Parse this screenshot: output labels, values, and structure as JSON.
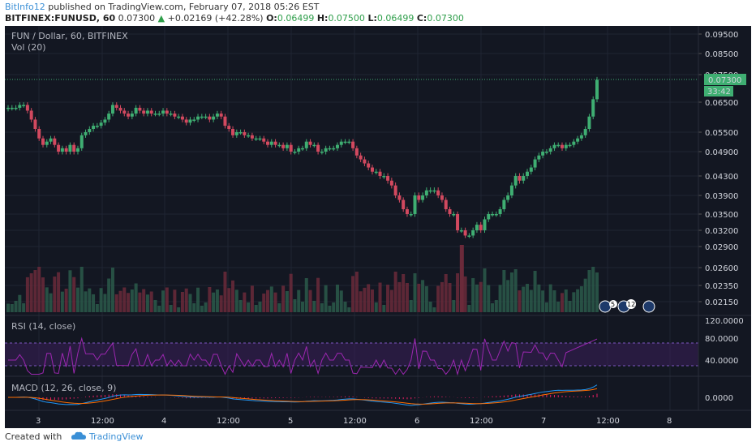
{
  "header": {
    "user": "BitInfo12",
    "published_text": "published on TradingView.com, February 07, 2018 05:26 EST",
    "symbol": "BITFINEX:FUNUSD, 60",
    "last": "0.07300",
    "change_arrow": "▲",
    "change": "+0.02169 (+42.28%)",
    "o_label": "O:",
    "o": "0.06499",
    "h_label": "H:",
    "h": "0.07500",
    "l_label": "L:",
    "l": "0.06499",
    "c_label": "C:",
    "c": "0.07300"
  },
  "panels": {
    "main_title": "FUN / Dollar, 60, BITFINEX",
    "vol_label": "Vol (20)",
    "rsi_label": "RSI (14, close)",
    "macd_label": "MACD (12, 26, close, 9)",
    "current_price": "0.07300",
    "countdown": "33:42",
    "event_badges": [
      "5",
      "12"
    ]
  },
  "colors": {
    "background": "#131722",
    "up": "#26a69a",
    "down": "#ef5350",
    "up_candle": "#3fae72",
    "down_candle": "#d2495f",
    "rsi_band": "#3a1f5a",
    "rsi_line": "#9c27b0",
    "macd_line": "#2196f3",
    "signal_line": "#ff6d00",
    "hist": "#e91e63"
  },
  "chart_data": {
    "type": "candlestick",
    "price_axis_ticks": [
      "0.09500",
      "0.08500",
      "0.07500",
      "0.06500",
      "0.05500",
      "0.04900",
      "0.04300",
      "0.03900",
      "0.03500",
      "0.03200",
      "0.02900",
      "0.02600",
      "0.02350",
      "0.02150"
    ],
    "price_ticks_numeric": [
      0.095,
      0.085,
      0.075,
      0.065,
      0.055,
      0.049,
      0.043,
      0.039,
      0.035,
      0.032,
      0.029,
      0.026,
      0.0235,
      0.0215
    ],
    "rsi_axis_ticks": [
      "120.0000",
      "80.0000",
      "40.0000"
    ],
    "macd_axis_ticks": [
      "0.0000"
    ],
    "x_axis_ticks": [
      "3",
      "12:00",
      "4",
      "12:00",
      "5",
      "12:00",
      "6",
      "12:00",
      "7",
      "12:00",
      "8"
    ],
    "closes": [
      0.063,
      0.063,
      0.063,
      0.064,
      0.064,
      0.062,
      0.059,
      0.056,
      0.053,
      0.051,
      0.052,
      0.053,
      0.051,
      0.049,
      0.05,
      0.049,
      0.051,
      0.049,
      0.05,
      0.054,
      0.055,
      0.056,
      0.057,
      0.057,
      0.058,
      0.059,
      0.061,
      0.064,
      0.063,
      0.062,
      0.061,
      0.06,
      0.061,
      0.063,
      0.062,
      0.061,
      0.062,
      0.061,
      0.061,
      0.061,
      0.062,
      0.061,
      0.061,
      0.06,
      0.06,
      0.059,
      0.058,
      0.059,
      0.059,
      0.06,
      0.06,
      0.06,
      0.059,
      0.06,
      0.061,
      0.06,
      0.057,
      0.056,
      0.054,
      0.055,
      0.055,
      0.054,
      0.054,
      0.053,
      0.053,
      0.053,
      0.052,
      0.051,
      0.052,
      0.051,
      0.051,
      0.05,
      0.051,
      0.049,
      0.049,
      0.05,
      0.05,
      0.052,
      0.051,
      0.051,
      0.049,
      0.049,
      0.05,
      0.05,
      0.05,
      0.051,
      0.052,
      0.052,
      0.052,
      0.05,
      0.048,
      0.047,
      0.046,
      0.045,
      0.044,
      0.044,
      0.043,
      0.043,
      0.042,
      0.041,
      0.039,
      0.038,
      0.036,
      0.035,
      0.035,
      0.039,
      0.038,
      0.039,
      0.04,
      0.04,
      0.04,
      0.039,
      0.038,
      0.036,
      0.035,
      0.035,
      0.032,
      0.032,
      0.031,
      0.031,
      0.032,
      0.033,
      0.032,
      0.034,
      0.035,
      0.035,
      0.035,
      0.036,
      0.038,
      0.039,
      0.041,
      0.043,
      0.042,
      0.043,
      0.044,
      0.045,
      0.047,
      0.048,
      0.049,
      0.049,
      0.05,
      0.051,
      0.051,
      0.05,
      0.051,
      0.051,
      0.052,
      0.053,
      0.054,
      0.056,
      0.06,
      0.066,
      0.073
    ],
    "volume_up_count_note": ""
  }
}
